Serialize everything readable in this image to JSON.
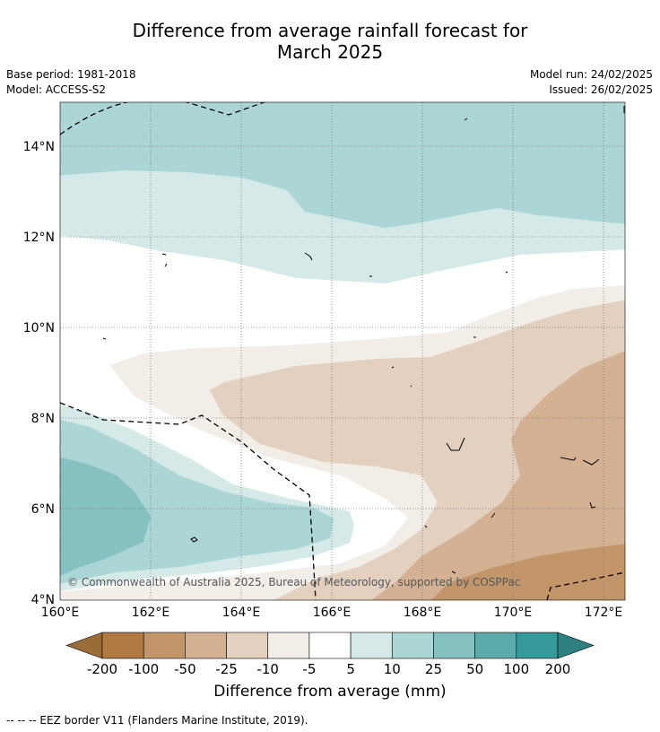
{
  "title_line1": "Difference from average rainfall forecast for",
  "title_line2": "March 2025",
  "base_period": "Base period: 1981-2018",
  "model": "Model: ACCESS-S2",
  "model_run": "Model run: 24/02/2025",
  "issued": "Issued: 26/02/2025",
  "copyright": "© Commonwealth of Australia 2025, Bureau of Meteorology, supported by COSPPac",
  "lon_ticks": [
    "160°E",
    "162°E",
    "164°E",
    "166°E",
    "168°E",
    "170°E",
    "172°E"
  ],
  "lat_ticks": [
    "4°N",
    "6°N",
    "8°N",
    "10°N",
    "12°N",
    "14°N"
  ],
  "legend": {
    "title": "Difference from average (mm)",
    "labels": [
      "-200",
      "-100",
      "-50",
      "-25",
      "-10",
      "-5",
      "5",
      "10",
      "25",
      "50",
      "100",
      "200"
    ],
    "colors": [
      "#9c6b3a",
      "#b07a42",
      "#c3966a",
      "#d4b192",
      "#e3d0bf",
      "#f3ede7",
      "#ffffff",
      "#d6e9e9",
      "#acd5d5",
      "#86c1c1",
      "#5cabab",
      "#35999a",
      "#2d7f80"
    ]
  },
  "footnote": "--  --  -- EEZ border V11 (Flanders Marine Institute, 2019)."
}
